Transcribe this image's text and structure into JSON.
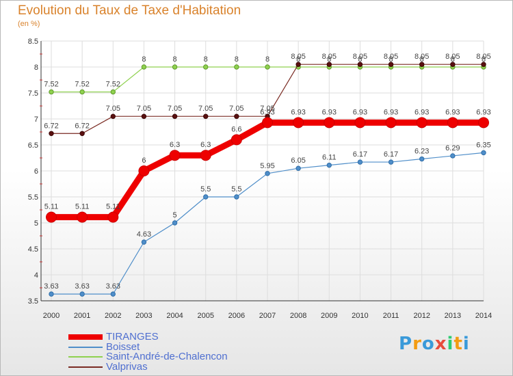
{
  "title": "Evolution du Taux de Taxe d'Habitation",
  "subtitle": "(en %)",
  "logo": {
    "text": "Proxiti",
    "letters": [
      "P",
      "r",
      "o",
      "x",
      "i",
      "t",
      "i"
    ],
    "colors": [
      "#3a9ad9",
      "#f39c12",
      "#3a9ad9",
      "#e74c3c",
      "#2ecc71",
      "#f39c12",
      "#3a9ad9"
    ]
  },
  "chart_data": {
    "type": "line",
    "x": [
      "2000",
      "2001",
      "2002",
      "2003",
      "2004",
      "2005",
      "2006",
      "2007",
      "2008",
      "2009",
      "2010",
      "2011",
      "2012",
      "2013",
      "2014"
    ],
    "ylim": [
      3.5,
      8.5
    ],
    "yticks": [
      "3.5",
      "4",
      "4.5",
      "5",
      "5.5",
      "6",
      "6.5",
      "7",
      "7.5",
      "8",
      "8.5"
    ],
    "grid": true,
    "legend_position": "bottom-left",
    "series": [
      {
        "name": "TIRANGES",
        "color": "#ee0000",
        "values": [
          5.11,
          5.11,
          5.11,
          6,
          6.3,
          6.3,
          6.6,
          6.93,
          6.93,
          6.93,
          6.93,
          6.93,
          6.93,
          6.93,
          6.93
        ],
        "labels": [
          "5.11",
          "5.11",
          "5.11",
          "6",
          "6.3",
          "6.3",
          "6.6",
          "6.93",
          "6.93",
          "6.93",
          "6.93",
          "6.93",
          "6.93",
          "6.93",
          "6.93"
        ]
      },
      {
        "name": "Boisset",
        "color": "#4f8ec9",
        "values": [
          3.63,
          3.63,
          3.63,
          4.63,
          5,
          5.5,
          5.5,
          5.95,
          6.05,
          6.11,
          6.17,
          6.17,
          6.23,
          6.29,
          6.35
        ],
        "labels": [
          "3.63",
          "3.63",
          "3.63",
          "4.63",
          "5",
          "5.5",
          "5.5",
          "5.95",
          "6.05",
          "6.11",
          "6.17",
          "6.17",
          "6.23",
          "6.29",
          "6.35"
        ]
      },
      {
        "name": "Saint-André-de-Chalencon",
        "color": "#8fd14f",
        "values": [
          7.52,
          7.52,
          7.52,
          8,
          8,
          8,
          8,
          8,
          8,
          8,
          8,
          8,
          8,
          8,
          8
        ],
        "labels": [
          "7.52",
          "7.52",
          "7.52",
          "8",
          "8",
          "8",
          "8",
          "8",
          "8",
          "8",
          "8",
          "8",
          "8",
          "8",
          "8"
        ]
      },
      {
        "name": "Valprivas",
        "color": "#7a2a22",
        "values": [
          6.72,
          6.72,
          7.05,
          7.05,
          7.05,
          7.05,
          7.05,
          7.05,
          8.05,
          8.05,
          8.05,
          8.05,
          8.05,
          8.05,
          8.05
        ],
        "labels": [
          "6.72",
          "6.72",
          "7.05",
          "7.05",
          "7.05",
          "7.05",
          "7.05",
          "7.05",
          "8.05",
          "8.05",
          "8.05",
          "8.05",
          "8.05",
          "8.05",
          "8.05"
        ]
      }
    ]
  }
}
